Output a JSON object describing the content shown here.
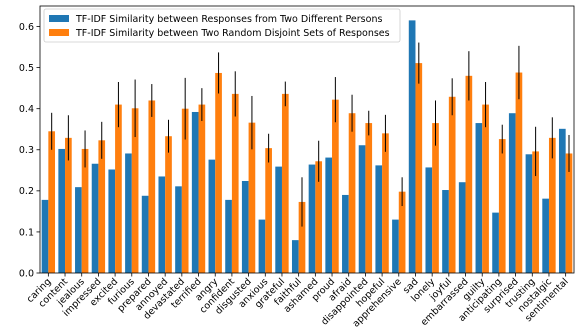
{
  "chart_data": {
    "type": "bar",
    "title": "",
    "xlabel": "",
    "ylabel": "",
    "ylim": [
      0,
      0.65
    ],
    "yticks": [
      0.0,
      0.1,
      0.2,
      0.3,
      0.4,
      0.5,
      0.6
    ],
    "ytick_labels": [
      "0.0",
      "0.1",
      "0.2",
      "0.3",
      "0.4",
      "0.5",
      "0.6"
    ],
    "legend_position": "top-left",
    "grid": false,
    "categories": [
      "caring",
      "content",
      "jealous",
      "impressed",
      "excited",
      "furious",
      "prepared",
      "annoyed",
      "devastated",
      "terrified",
      "angry",
      "confident",
      "disgusted",
      "anxious",
      "grateful",
      "faithful",
      "ashamed",
      "proud",
      "afraid",
      "disappointed",
      "hopeful",
      "apprehensive",
      "sad",
      "lonely",
      "joyful",
      "embarrassed",
      "guilty",
      "anticipating",
      "surprised",
      "trusting",
      "nostalgic",
      "sentimental"
    ],
    "series": [
      {
        "name": "TF-IDF Similarity between Responses from Two Different Persons",
        "color": "#1f77b4",
        "values": [
          0.178,
          0.302,
          0.209,
          0.266,
          0.252,
          0.291,
          0.188,
          0.235,
          0.211,
          0.392,
          0.276,
          0.178,
          0.224,
          0.13,
          0.259,
          0.08,
          0.264,
          0.281,
          0.19,
          0.311,
          0.262,
          0.13,
          0.615,
          0.257,
          0.202,
          0.221,
          0.365,
          0.147,
          0.389,
          0.289,
          0.181,
          0.351
        ]
      },
      {
        "name": "TF-IDF Similarity between Two Random Disjoint Sets of Responses",
        "color": "#ff7f0e",
        "values": [
          0.345,
          0.329,
          0.302,
          0.323,
          0.41,
          0.401,
          0.42,
          0.333,
          0.4,
          0.41,
          0.487,
          0.436,
          0.366,
          0.304,
          0.436,
          0.173,
          0.272,
          0.422,
          0.389,
          0.365,
          0.34,
          0.198,
          0.511,
          0.365,
          0.429,
          0.48,
          0.41,
          0.326,
          0.488,
          0.296,
          0.329,
          0.291
        ],
        "errors": [
          0.045,
          0.055,
          0.045,
          0.045,
          0.055,
          0.07,
          0.04,
          0.04,
          0.075,
          0.04,
          0.05,
          0.055,
          0.065,
          0.035,
          0.03,
          0.06,
          0.05,
          0.055,
          0.045,
          0.03,
          0.045,
          0.035,
          0.05,
          0.055,
          0.045,
          0.06,
          0.055,
          0.035,
          0.065,
          0.06,
          0.05,
          0.045
        ]
      }
    ]
  }
}
